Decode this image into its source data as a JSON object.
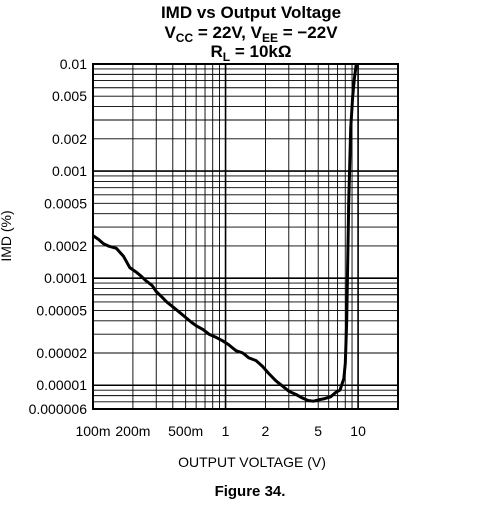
{
  "chart_data": {
    "type": "line",
    "title_lines": [
      [
        "IMD vs Output Voltage"
      ],
      [
        "V",
        "CC",
        " = 22V, V",
        "EE",
        " = −22V"
      ],
      [
        "R",
        "L",
        " = 10kΩ"
      ]
    ],
    "xlabel": "OUTPUT VOLTAGE (V)",
    "ylabel": "IMD (%)",
    "figure_label": "Figure 34.",
    "x_scale": "log",
    "y_scale": "log",
    "xlim": [
      0.1,
      20
    ],
    "ylim": [
      6e-06,
      0.01
    ],
    "grid": true,
    "x_ticks": [
      {
        "value": 0.1,
        "label": "100m"
      },
      {
        "value": 0.2,
        "label": "200m"
      },
      {
        "value": 0.5,
        "label": "500m"
      },
      {
        "value": 1,
        "label": "1"
      },
      {
        "value": 2,
        "label": "2"
      },
      {
        "value": 5,
        "label": "5"
      },
      {
        "value": 10,
        "label": "10"
      }
    ],
    "y_ticks": [
      {
        "value": 0.01,
        "label": "0.01"
      },
      {
        "value": 0.005,
        "label": "0.005"
      },
      {
        "value": 0.002,
        "label": "0.002"
      },
      {
        "value": 0.001,
        "label": "0.001"
      },
      {
        "value": 0.0005,
        "label": "0.0005"
      },
      {
        "value": 0.0002,
        "label": "0.0002"
      },
      {
        "value": 0.0001,
        "label": "0.0001"
      },
      {
        "value": 5e-05,
        "label": "0.00005"
      },
      {
        "value": 2e-05,
        "label": "0.00002"
      },
      {
        "value": 1e-05,
        "label": "0.00001"
      },
      {
        "value": 6e-06,
        "label": "0.000006"
      }
    ],
    "series": [
      {
        "color": "#000000",
        "x": [
          0.1,
          0.11,
          0.12,
          0.13,
          0.15,
          0.17,
          0.19,
          0.21,
          0.23,
          0.25,
          0.28,
          0.3,
          0.33,
          0.36,
          0.4,
          0.44,
          0.5,
          0.55,
          0.6,
          0.68,
          0.75,
          0.85,
          0.95,
          1.05,
          1.2,
          1.35,
          1.5,
          1.7,
          1.9,
          2.1,
          2.4,
          2.7,
          3.0,
          3.4,
          3.8,
          4.2,
          4.6,
          5.0,
          5.6,
          6.2,
          6.8,
          7.3,
          7.8,
          8.0,
          8.2,
          8.5,
          8.8,
          9.1,
          9.4,
          9.7
        ],
        "y": [
          0.00025,
          0.00023,
          0.00021,
          0.0002,
          0.00019,
          0.00016,
          0.000125,
          0.000115,
          0.000105,
          9.5e-05,
          8.5e-05,
          7.5e-05,
          6.7e-05,
          6e-05,
          5.4e-05,
          4.9e-05,
          4.3e-05,
          3.9e-05,
          3.6e-05,
          3.3e-05,
          3e-05,
          2.8e-05,
          2.6e-05,
          2.4e-05,
          2.1e-05,
          2e-05,
          1.8e-05,
          1.7e-05,
          1.5e-05,
          1.3e-05,
          1.1e-05,
          9.8e-06,
          8.8e-06,
          8.2e-06,
          7.6e-06,
          7.2e-06,
          7.1e-06,
          7.3e-06,
          7.5e-06,
          7.8e-06,
          8.6e-06,
          9e-06,
          1.15e-05,
          1.6e-05,
          4e-05,
          0.0005,
          0.0025,
          0.005,
          0.0075,
          0.01
        ]
      }
    ]
  }
}
